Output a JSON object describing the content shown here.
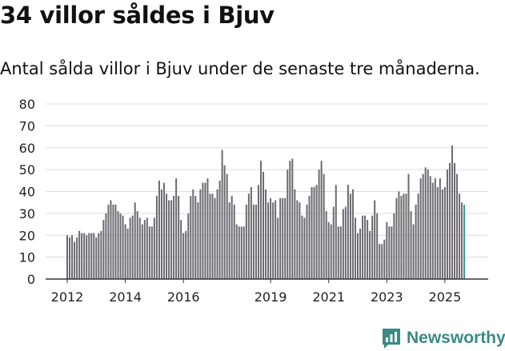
{
  "header": {
    "title": "34 villor såldes i Bjuv",
    "subtitle": "Antal sålda villor i Bjuv under de senaste tre månaderna."
  },
  "brand": {
    "name": "Newsworthy"
  },
  "colors": {
    "bar": "#6b6a70",
    "highlight": "#3a9a96",
    "grid": "#dcdcdc",
    "axis": "#333333"
  },
  "chart_data": {
    "type": "bar",
    "title": "34 villor såldes i Bjuv",
    "subtitle": "Antal sålda villor i Bjuv under de senaste tre månaderna.",
    "xlabel": "",
    "ylabel": "",
    "ylim": [
      0,
      80
    ],
    "yticks": [
      0,
      10,
      20,
      30,
      40,
      50,
      60,
      70,
      80
    ],
    "xtick_labels": [
      {
        "label": "2012",
        "index": 0
      },
      {
        "label": "2014",
        "index": 24
      },
      {
        "label": "2016",
        "index": 48
      },
      {
        "label": "2019",
        "index": 84
      },
      {
        "label": "2021",
        "index": 108
      },
      {
        "label": "2023",
        "index": 132
      },
      {
        "label": "2025",
        "index": 156
      }
    ],
    "start": "2012-01",
    "frequency": "monthly, rolling 3-month total",
    "values": [
      20,
      19,
      20,
      17,
      19,
      22,
      21,
      21,
      20,
      21,
      21,
      21,
      19,
      21,
      22,
      27,
      30,
      34,
      36,
      34,
      34,
      31,
      30,
      29,
      25,
      23,
      28,
      29,
      35,
      31,
      28,
      25,
      27,
      28,
      24,
      24,
      28,
      38,
      45,
      41,
      44,
      39,
      36,
      36,
      38,
      46,
      38,
      27,
      21,
      22,
      30,
      38,
      41,
      38,
      35,
      41,
      44,
      44,
      46,
      39,
      39,
      37,
      41,
      45,
      59,
      52,
      48,
      35,
      38,
      34,
      25,
      24,
      24,
      24,
      34,
      39,
      42,
      34,
      34,
      43,
      54,
      49,
      41,
      35,
      37,
      35,
      36,
      28,
      37,
      37,
      37,
      50,
      54,
      55,
      41,
      36,
      35,
      29,
      28,
      34,
      38,
      42,
      42,
      43,
      50,
      54,
      48,
      31,
      26,
      25,
      33,
      43,
      24,
      24,
      32,
      33,
      43,
      39,
      41,
      28,
      21,
      23,
      29,
      29,
      27,
      22,
      29,
      36,
      30,
      16,
      16,
      18,
      26,
      24,
      24,
      30,
      37,
      40,
      38,
      39,
      39,
      48,
      31,
      25,
      34,
      39,
      46,
      48,
      51,
      50,
      47,
      44,
      46,
      42,
      46,
      41,
      42,
      50,
      53,
      61,
      53,
      48,
      39,
      35,
      34
    ],
    "highlight_last": true,
    "annotation": {
      "text": "34",
      "index": 165
    }
  }
}
